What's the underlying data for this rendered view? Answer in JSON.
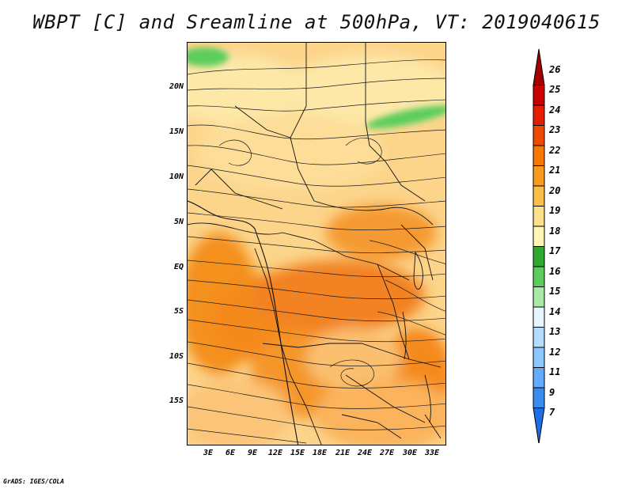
{
  "title": "WBPT [C] and Sreamline at 500hPa, VT: 2019040615",
  "credit": "GrADS: IGES/COLA",
  "map": {
    "lat_labels": [
      "20N",
      "15N",
      "10N",
      "5N",
      "EQ",
      "5S",
      "10S",
      "15S"
    ],
    "lon_labels": [
      "3E",
      "6E",
      "9E",
      "12E",
      "15E",
      "18E",
      "21E",
      "24E",
      "27E",
      "30E",
      "33E"
    ]
  },
  "colorbar": {
    "labels": [
      "26",
      "25",
      "24",
      "23",
      "22",
      "21",
      "20",
      "19",
      "18",
      "17",
      "16",
      "15",
      "14",
      "13",
      "12",
      "11",
      "9",
      "7"
    ],
    "colors": [
      "#a50000",
      "#c80000",
      "#e61e00",
      "#f04a00",
      "#fa7800",
      "#fa9b1e",
      "#fcbe4a",
      "#fde08c",
      "#fff5b4",
      "#2ea82e",
      "#5ccd5c",
      "#a8eba8",
      "#e6f7ff",
      "#b4dcff",
      "#8cc8ff",
      "#64aaff",
      "#3c8cf0",
      "#1e6ee6"
    ]
  }
}
